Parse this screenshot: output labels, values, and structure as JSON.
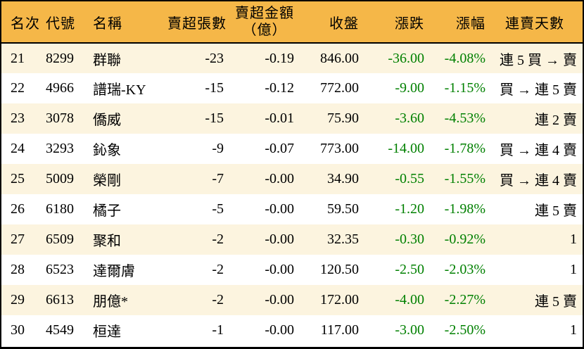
{
  "chart_data": {
    "type": "table",
    "columns": [
      {
        "key": "rank",
        "label": "名次"
      },
      {
        "key": "code",
        "label": "代號"
      },
      {
        "key": "name",
        "label": "名稱"
      },
      {
        "key": "net_sell_lots",
        "label": "賣超張數"
      },
      {
        "key": "net_sell_amount",
        "label": "賣超金額",
        "sublabel": "（億）"
      },
      {
        "key": "close",
        "label": "收盤"
      },
      {
        "key": "change",
        "label": "漲跌"
      },
      {
        "key": "change_pct",
        "label": "漲幅"
      },
      {
        "key": "streak",
        "label": "連賣天數"
      }
    ],
    "green_value_columns": [
      "change",
      "change_pct"
    ],
    "rows": [
      {
        "rank": "21",
        "code": "8299",
        "name": "群聯",
        "net_sell_lots": "-23",
        "net_sell_amount": "-0.19",
        "close": "846.00",
        "change": "-36.00",
        "change_pct": "-4.08%",
        "streak": "連 5 買 → 賣"
      },
      {
        "rank": "22",
        "code": "4966",
        "name": "譜瑞-KY",
        "net_sell_lots": "-15",
        "net_sell_amount": "-0.12",
        "close": "772.00",
        "change": "-9.00",
        "change_pct": "-1.15%",
        "streak": "買 → 連 5 賣"
      },
      {
        "rank": "23",
        "code": "3078",
        "name": "僑威",
        "net_sell_lots": "-15",
        "net_sell_amount": "-0.01",
        "close": "75.90",
        "change": "-3.60",
        "change_pct": "-4.53%",
        "streak": "連 2 賣"
      },
      {
        "rank": "24",
        "code": "3293",
        "name": "鈊象",
        "net_sell_lots": "-9",
        "net_sell_amount": "-0.07",
        "close": "773.00",
        "change": "-14.00",
        "change_pct": "-1.78%",
        "streak": "買 → 連 4 賣"
      },
      {
        "rank": "25",
        "code": "5009",
        "name": "榮剛",
        "net_sell_lots": "-7",
        "net_sell_amount": "-0.00",
        "close": "34.90",
        "change": "-0.55",
        "change_pct": "-1.55%",
        "streak": "買 → 連 4 賣"
      },
      {
        "rank": "26",
        "code": "6180",
        "name": "橘子",
        "net_sell_lots": "-5",
        "net_sell_amount": "-0.00",
        "close": "59.50",
        "change": "-1.20",
        "change_pct": "-1.98%",
        "streak": "連 5 賣"
      },
      {
        "rank": "27",
        "code": "6509",
        "name": "聚和",
        "net_sell_lots": "-2",
        "net_sell_amount": "-0.00",
        "close": "32.35",
        "change": "-0.30",
        "change_pct": "-0.92%",
        "streak": "1"
      },
      {
        "rank": "28",
        "code": "6523",
        "name": "達爾膚",
        "net_sell_lots": "-2",
        "net_sell_amount": "-0.00",
        "close": "120.50",
        "change": "-2.50",
        "change_pct": "-2.03%",
        "streak": "1"
      },
      {
        "rank": "29",
        "code": "6613",
        "name": "朋億*",
        "net_sell_lots": "-2",
        "net_sell_amount": "-0.00",
        "close": "172.00",
        "change": "-4.00",
        "change_pct": "-2.27%",
        "streak": "連 5 賣"
      },
      {
        "rank": "30",
        "code": "4549",
        "name": "桓達",
        "net_sell_lots": "-1",
        "net_sell_amount": "-0.00",
        "close": "117.00",
        "change": "-3.00",
        "change_pct": "-2.50%",
        "streak": "1"
      }
    ],
    "colors": {
      "header_bg": "#F5B748",
      "row_alt_bg": "#FCF4DF",
      "row_bg": "#FFFFFF",
      "negative_value_green": "#008000",
      "border": "#000000"
    },
    "layout": {
      "grid": "none",
      "alternating_rows": true
    }
  }
}
